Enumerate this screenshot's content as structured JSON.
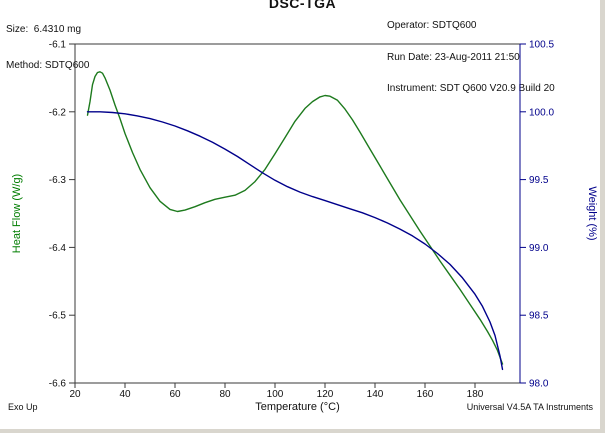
{
  "header": {
    "size_label": "Size:  6.4310 mg",
    "method_label": "Method: SDTQ600",
    "operator_label": "Operator: SDTQ600",
    "run_date_label": "Run Date: 23-Aug-2011 21:50",
    "instrument_label": "Instrument: SDT Q600 V20.9 Build 20"
  },
  "footer": {
    "exo_label": "Exo Up",
    "credit_label": "Universal V4.5A TA Instruments"
  },
  "chart_data": {
    "type": "line",
    "title": "DSC-TGA",
    "grid": false,
    "legend": "none",
    "x_axis": {
      "label": "Temperature (°C)",
      "range": [
        20,
        198
      ],
      "ticks": [
        "20",
        "40",
        "60",
        "80",
        "100",
        "120",
        "140",
        "160",
        "180"
      ]
    },
    "left_axis": {
      "label": "Heat Flow (W/g)",
      "range": [
        -6.6,
        -6.1
      ],
      "ticks": [
        "-6.1",
        "-6.2",
        "-6.3",
        "-6.4",
        "-6.5",
        "-6.6"
      ],
      "color": "#007d00"
    },
    "right_axis": {
      "label": "Weight (%)",
      "range": [
        98.0,
        100.5
      ],
      "ticks": [
        "100.5",
        "100.0",
        "99.5",
        "99.0",
        "98.5",
        "98.0"
      ],
      "color": "#00008b"
    },
    "series": [
      {
        "name": "Heat Flow",
        "axis": "left",
        "color": "#1d7a1d",
        "points": [
          [
            25,
            -6.205
          ],
          [
            26,
            -6.185
          ],
          [
            27,
            -6.16
          ],
          [
            28,
            -6.148
          ],
          [
            29,
            -6.142
          ],
          [
            30,
            -6.141
          ],
          [
            31,
            -6.143
          ],
          [
            32,
            -6.15
          ],
          [
            34,
            -6.168
          ],
          [
            36,
            -6.19
          ],
          [
            38,
            -6.21
          ],
          [
            40,
            -6.232
          ],
          [
            43,
            -6.26
          ],
          [
            46,
            -6.285
          ],
          [
            50,
            -6.312
          ],
          [
            54,
            -6.332
          ],
          [
            58,
            -6.344
          ],
          [
            61,
            -6.347
          ],
          [
            64,
            -6.345
          ],
          [
            68,
            -6.34
          ],
          [
            72,
            -6.334
          ],
          [
            76,
            -6.329
          ],
          [
            80,
            -6.326
          ],
          [
            84,
            -6.323
          ],
          [
            88,
            -6.316
          ],
          [
            92,
            -6.303
          ],
          [
            96,
            -6.285
          ],
          [
            100,
            -6.262
          ],
          [
            104,
            -6.238
          ],
          [
            108,
            -6.214
          ],
          [
            112,
            -6.195
          ],
          [
            115,
            -6.185
          ],
          [
            118,
            -6.178
          ],
          [
            120,
            -6.176
          ],
          [
            122,
            -6.177
          ],
          [
            125,
            -6.183
          ],
          [
            128,
            -6.196
          ],
          [
            131,
            -6.212
          ],
          [
            134,
            -6.23
          ],
          [
            138,
            -6.255
          ],
          [
            142,
            -6.28
          ],
          [
            146,
            -6.305
          ],
          [
            150,
            -6.33
          ],
          [
            154,
            -6.353
          ],
          [
            158,
            -6.376
          ],
          [
            162,
            -6.398
          ],
          [
            166,
            -6.42
          ],
          [
            170,
            -6.441
          ],
          [
            174,
            -6.462
          ],
          [
            178,
            -6.484
          ],
          [
            182,
            -6.506
          ],
          [
            185,
            -6.524
          ],
          [
            187,
            -6.537
          ],
          [
            189,
            -6.552
          ],
          [
            190,
            -6.562
          ],
          [
            191,
            -6.572
          ]
        ]
      },
      {
        "name": "Weight",
        "axis": "right",
        "color": "#00008b",
        "points": [
          [
            25,
            100.0
          ],
          [
            30,
            100.0
          ],
          [
            35,
            99.995
          ],
          [
            40,
            99.985
          ],
          [
            45,
            99.97
          ],
          [
            50,
            99.95
          ],
          [
            55,
            99.925
          ],
          [
            60,
            99.895
          ],
          [
            65,
            99.86
          ],
          [
            70,
            99.82
          ],
          [
            75,
            99.775
          ],
          [
            80,
            99.725
          ],
          [
            85,
            99.67
          ],
          [
            90,
            99.61
          ],
          [
            95,
            99.55
          ],
          [
            100,
            99.495
          ],
          [
            105,
            99.448
          ],
          [
            110,
            99.408
          ],
          [
            115,
            99.375
          ],
          [
            120,
            99.345
          ],
          [
            125,
            99.315
          ],
          [
            130,
            99.285
          ],
          [
            135,
            99.255
          ],
          [
            140,
            99.22
          ],
          [
            145,
            99.18
          ],
          [
            150,
            99.135
          ],
          [
            155,
            99.085
          ],
          [
            160,
            99.025
          ],
          [
            165,
            98.955
          ],
          [
            170,
            98.875
          ],
          [
            175,
            98.775
          ],
          [
            180,
            98.655
          ],
          [
            183,
            98.565
          ],
          [
            186,
            98.45
          ],
          [
            188,
            98.35
          ],
          [
            190,
            98.2
          ],
          [
            191,
            98.1
          ]
        ]
      }
    ]
  }
}
